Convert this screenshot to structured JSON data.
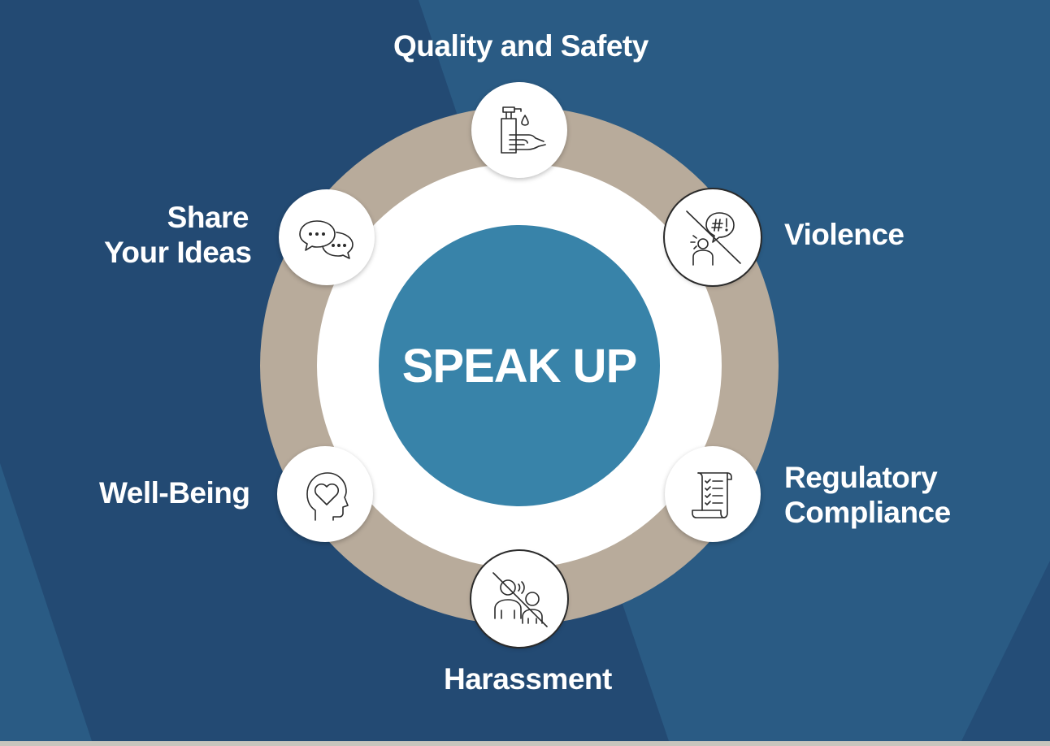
{
  "center_label": "SPEAK UP",
  "colors": {
    "background": "#234a73",
    "background_light": "#2a5b84",
    "ring": "#b8ab9b",
    "center": "#3883a9",
    "label_text": "#ffffff",
    "icon_stroke": "#2a2a2a"
  },
  "nodes": {
    "quality": {
      "lines": [
        "Quality and Safety"
      ],
      "icon": "hand-sanitizer-icon"
    },
    "violence": {
      "lines": [
        "Violence"
      ],
      "icon": "no-shouting-icon"
    },
    "regulatory": {
      "lines": [
        "Regulatory",
        "Compliance"
      ],
      "icon": "checklist-scroll-icon"
    },
    "harassment": {
      "lines": [
        "Harassment"
      ],
      "icon": "no-harassment-icon"
    },
    "wellbeing": {
      "lines": [
        "Well-Being"
      ],
      "icon": "head-heart-icon"
    },
    "ideas": {
      "lines": [
        "Share",
        "Your Ideas"
      ],
      "icon": "chat-bubbles-icon"
    }
  }
}
